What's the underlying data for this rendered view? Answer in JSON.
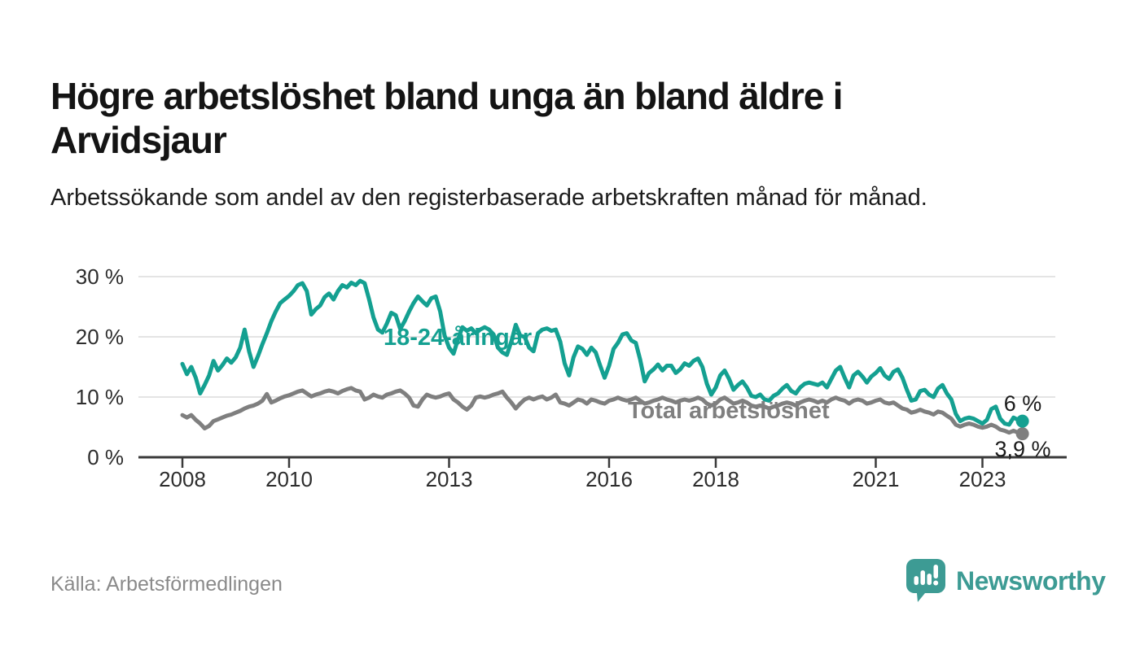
{
  "header": {
    "title": "Högre arbetslöshet bland unga än bland äldre i Arvidsjaur",
    "subtitle": "Arbetssökande som andel av den registerbaserade arbetskraften månad för månad."
  },
  "footer": {
    "source": "Källa: Arbetsförmedlingen",
    "brand_name": "Newsworthy",
    "brand_icon": "speech-bubble-bar-chart"
  },
  "colors": {
    "youth_line": "#14a091",
    "total_line": "#7f7f7f",
    "axis": "#3a3a3a",
    "gridline": "#dcdcdc",
    "brand_teal": "#3d9b94",
    "end_label_text": "#1b1b1b"
  },
  "chart_data": {
    "type": "line",
    "title": "",
    "xlabel": "",
    "ylabel": "",
    "grid": "horizontal",
    "legend_position": "inline-labels",
    "x_monthly_from": "2008-01",
    "x_monthly_to": "2023-10",
    "x_axis": {
      "tick_years": [
        2008,
        2010,
        2013,
        2016,
        2018,
        2021,
        2023
      ],
      "tick_labels": [
        "2008",
        "2010",
        "2013",
        "2016",
        "2018",
        "2021",
        "2023"
      ]
    },
    "y_axis": {
      "tick_values": [
        0,
        10,
        20,
        30
      ],
      "tick_labels": [
        "0 %",
        "10 %",
        "20 %",
        "30 %"
      ]
    },
    "ylim": [
      0,
      31.5
    ],
    "series": [
      {
        "name": "18-24-åringar",
        "color": "#14a091",
        "end_label": "6 %",
        "end_value": 6.0,
        "values": [
          15.5,
          13.8,
          15.0,
          13.2,
          10.6,
          12.0,
          13.6,
          16.0,
          14.4,
          15.3,
          16.4,
          15.7,
          16.6,
          18.2,
          21.2,
          17.6,
          15.0,
          16.8,
          18.8,
          20.6,
          22.6,
          24.2,
          25.6,
          26.2,
          26.8,
          27.6,
          28.6,
          28.9,
          27.6,
          23.7,
          24.6,
          25.2,
          26.6,
          27.2,
          26.2,
          27.6,
          28.6,
          28.2,
          29.0,
          28.6,
          29.3,
          28.9,
          26.2,
          23.2,
          21.2,
          20.7,
          22.2,
          24.0,
          23.6,
          21.3,
          22.6,
          24.2,
          25.6,
          26.7,
          25.9,
          25.2,
          26.4,
          26.7,
          24.2,
          20.2,
          18.2,
          17.2,
          19.6,
          21.6,
          21.0,
          21.4,
          20.6,
          21.2,
          21.6,
          21.2,
          20.4,
          18.2,
          17.4,
          17.0,
          19.2,
          22.0,
          20.2,
          20.0,
          18.2,
          17.6,
          20.6,
          21.2,
          21.4,
          21.0,
          21.2,
          19.2,
          15.6,
          13.6,
          16.6,
          18.4,
          18.0,
          17.0,
          18.2,
          17.4,
          15.2,
          13.2,
          15.2,
          18.0,
          19.0,
          20.4,
          20.6,
          19.4,
          19.0,
          16.2,
          12.6,
          14.0,
          14.6,
          15.4,
          14.4,
          15.2,
          15.2,
          14.0,
          14.6,
          15.6,
          15.2,
          16.0,
          16.4,
          15.0,
          12.2,
          10.4,
          11.6,
          13.6,
          14.4,
          13.0,
          11.2,
          12.0,
          12.6,
          11.6,
          10.2,
          10.0,
          10.4,
          9.6,
          9.4,
          10.2,
          10.6,
          11.4,
          12.0,
          11.0,
          10.6,
          11.6,
          12.2,
          12.4,
          12.2,
          12.0,
          12.4,
          11.6,
          13.0,
          14.4,
          15.0,
          13.2,
          11.6,
          13.6,
          14.2,
          13.4,
          12.4,
          13.4,
          14.0,
          14.8,
          13.6,
          13.0,
          14.2,
          14.6,
          13.2,
          11.2,
          9.4,
          9.6,
          11.0,
          11.2,
          10.4,
          10.0,
          11.4,
          12.0,
          10.6,
          9.6,
          7.2,
          6.0,
          6.4,
          6.6,
          6.4,
          6.0,
          5.6,
          6.2,
          8.0,
          8.4,
          6.4,
          5.6,
          5.4,
          6.6,
          6.2,
          6.0
        ]
      },
      {
        "name": "Total arbetslöshet",
        "color": "#7f7f7f",
        "end_label": "3,9 %",
        "end_value": 3.9,
        "values": [
          7.0,
          6.6,
          7.0,
          6.2,
          5.6,
          4.8,
          5.2,
          6.0,
          6.3,
          6.6,
          6.9,
          7.1,
          7.4,
          7.7,
          8.1,
          8.4,
          8.6,
          8.9,
          9.4,
          10.5,
          9.1,
          9.4,
          9.8,
          10.1,
          10.3,
          10.6,
          10.9,
          11.1,
          10.6,
          10.1,
          10.4,
          10.6,
          10.9,
          11.1,
          10.9,
          10.6,
          11.0,
          11.3,
          11.5,
          11.1,
          10.9,
          9.6,
          9.9,
          10.4,
          10.1,
          9.9,
          10.4,
          10.6,
          10.9,
          11.1,
          10.6,
          9.9,
          8.6,
          8.4,
          9.6,
          10.4,
          10.1,
          9.9,
          10.1,
          10.4,
          10.6,
          9.6,
          9.1,
          8.4,
          7.9,
          8.6,
          9.9,
          10.1,
          9.9,
          10.1,
          10.4,
          10.6,
          10.9,
          9.9,
          9.1,
          8.1,
          8.9,
          9.6,
          9.9,
          9.6,
          9.9,
          10.1,
          9.6,
          9.9,
          10.4,
          9.1,
          8.9,
          8.6,
          9.1,
          9.6,
          9.4,
          8.9,
          9.6,
          9.4,
          9.1,
          8.9,
          9.4,
          9.6,
          9.9,
          9.6,
          9.4,
          9.6,
          9.9,
          9.4,
          8.9,
          9.1,
          9.4,
          9.6,
          9.9,
          9.6,
          9.4,
          9.1,
          9.4,
          9.6,
          9.4,
          9.6,
          9.9,
          9.6,
          8.9,
          8.6,
          8.9,
          9.6,
          9.9,
          9.4,
          8.9,
          9.1,
          9.4,
          9.1,
          8.6,
          8.4,
          8.6,
          8.4,
          8.1,
          8.4,
          8.6,
          8.9,
          9.1,
          8.9,
          8.6,
          9.1,
          9.4,
          9.6,
          9.4,
          9.1,
          9.4,
          9.1,
          9.6,
          9.9,
          9.6,
          9.4,
          8.9,
          9.4,
          9.6,
          9.4,
          8.9,
          9.1,
          9.4,
          9.6,
          9.1,
          8.9,
          9.1,
          8.6,
          8.1,
          7.9,
          7.4,
          7.6,
          7.9,
          7.6,
          7.4,
          7.1,
          7.6,
          7.4,
          6.9,
          6.4,
          5.4,
          5.1,
          5.4,
          5.6,
          5.4,
          5.1,
          4.9,
          5.1,
          5.4,
          5.1,
          4.6,
          4.4,
          4.1,
          4.4,
          4.1,
          3.9
        ]
      }
    ]
  }
}
